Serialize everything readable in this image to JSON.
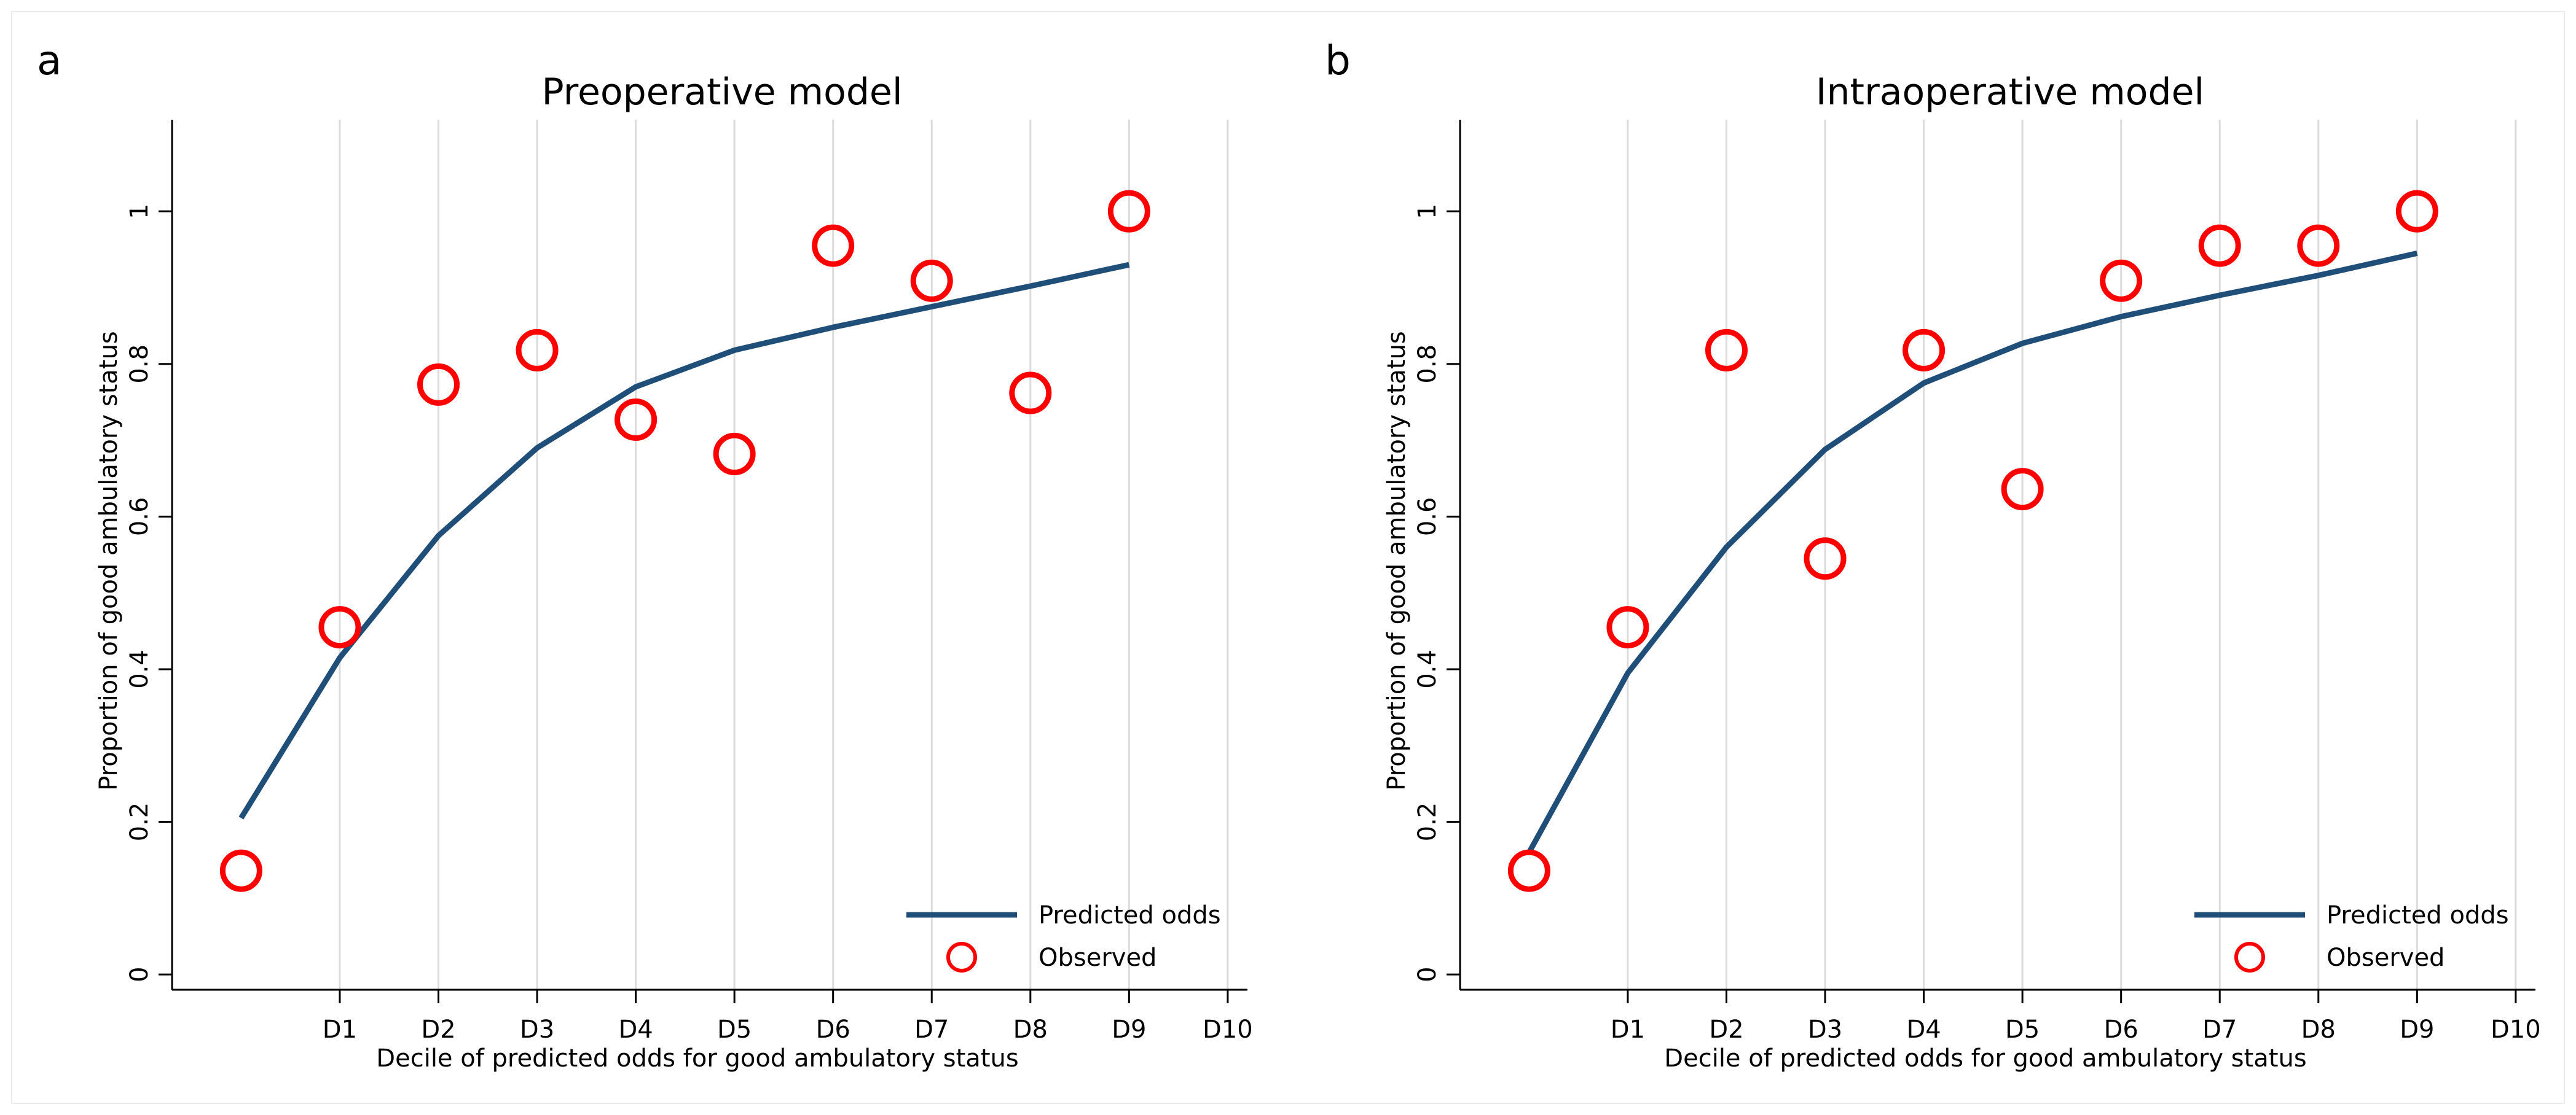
{
  "chart_data": [
    {
      "panel_letter": "a",
      "type": "line",
      "title": "Preoperative model",
      "xlabel": "Decile of predicted odds for good ambulatory status",
      "ylabel": "Proportion of good ambulatory status",
      "x_tick_labels": [
        "D1",
        "D2",
        "D3",
        "D4",
        "D5",
        "D6",
        "D7",
        "D8",
        "D9",
        "D10"
      ],
      "y_ticks": [
        0,
        0.2,
        0.4,
        0.6,
        0.8,
        1
      ],
      "ylim": [
        -0.02,
        1.12
      ],
      "xlim": [
        -0.7,
        10.2
      ],
      "grid": "vertical",
      "legend": {
        "placement": "bottom-right",
        "entries": [
          "Predicted odds",
          "Observed"
        ]
      },
      "series": [
        {
          "name": "Predicted odds",
          "kind": "line",
          "color": "#1f4e79",
          "x": [
            0,
            1,
            2,
            3,
            4,
            5,
            6,
            7,
            8,
            9
          ],
          "y": [
            0.205,
            0.415,
            0.575,
            0.69,
            0.77,
            0.818,
            0.848,
            0.875,
            0.902,
            0.93
          ]
        },
        {
          "name": "Observed",
          "kind": "scatter",
          "color": "#ff0000",
          "x": [
            0,
            1,
            2,
            3,
            4,
            5,
            6,
            7,
            8,
            9
          ],
          "y": [
            0.136,
            0.455,
            0.773,
            0.818,
            0.727,
            0.682,
            0.955,
            0.909,
            0.762,
            1.0
          ]
        }
      ]
    },
    {
      "panel_letter": "b",
      "type": "line",
      "title": "Intraoperative model",
      "xlabel": "Decile of predicted odds for good ambulatory status",
      "ylabel": "Proportion of good ambulatory status",
      "x_tick_labels": [
        "D1",
        "D2",
        "D3",
        "D4",
        "D5",
        "D6",
        "D7",
        "D8",
        "D9",
        "D10"
      ],
      "y_ticks": [
        0,
        0.2,
        0.4,
        0.6,
        0.8,
        1
      ],
      "ylim": [
        -0.02,
        1.12
      ],
      "xlim": [
        -0.7,
        10.2
      ],
      "grid": "vertical",
      "legend": {
        "placement": "bottom-right",
        "entries": [
          "Predicted odds",
          "Observed"
        ]
      },
      "series": [
        {
          "name": "Predicted odds",
          "kind": "line",
          "color": "#1f4e79",
          "x": [
            0,
            1,
            2,
            3,
            4,
            5,
            6,
            7,
            8,
            9
          ],
          "y": [
            0.16,
            0.395,
            0.56,
            0.688,
            0.775,
            0.827,
            0.862,
            0.89,
            0.916,
            0.945
          ]
        },
        {
          "name": "Observed",
          "kind": "scatter",
          "color": "#ff0000",
          "x": [
            0,
            1,
            2,
            3,
            4,
            5,
            6,
            7,
            8,
            9
          ],
          "y": [
            0.136,
            0.455,
            0.818,
            0.545,
            0.818,
            0.636,
            0.909,
            0.955,
            0.955,
            1.0
          ]
        }
      ]
    }
  ]
}
